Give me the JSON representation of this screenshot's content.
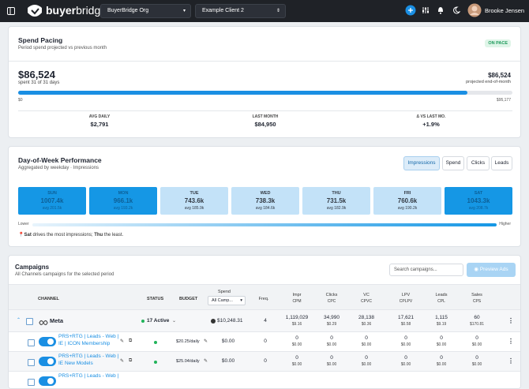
{
  "header": {
    "logo_bold": "buyer",
    "logo_light": "bridge",
    "org_select": "BuyerBridge Org",
    "client_select": "Example Client 2",
    "user_name": "Brooke Jensen"
  },
  "spend_pacing": {
    "title": "Spend Pacing",
    "subtitle": "Period spend projected vs previous month",
    "status": "ON PACE",
    "spent": {
      "value": 86524,
      "label": "$86,524"
    },
    "spent_note": "spent 31 of 31 days",
    "projected": "$86,524",
    "projected_note": "projected end-of-month",
    "scale": [
      {
        "value": 0,
        "label": "$0"
      },
      {
        "value": 95177,
        "label": "$95,177"
      }
    ],
    "stats": [
      {
        "label": "AVG DAILY",
        "value": "$2,791"
      },
      {
        "label": "LAST MONTH",
        "value": "$84,950"
      },
      {
        "label": "Δ VS LAST MO.",
        "value": "+1.9%"
      }
    ]
  },
  "day_of_week": {
    "title": "Day-of-Week Performance",
    "subtitle": "Aggregated by weekday · Impressions",
    "metrics": [
      "Impressions",
      "Spend",
      "Clicks",
      "Leads"
    ],
    "active_metric": 0,
    "days": [
      {
        "day": "SUN",
        "total": "1007.4k",
        "avg": "avg 201.5k",
        "color": "#1597e5",
        "text_color": "#0d5f96"
      },
      {
        "day": "MON",
        "total": "966.1k",
        "avg": "avg 193.2k",
        "color": "#1597e5",
        "text_color": "#0d5f96"
      },
      {
        "day": "TUE",
        "total": "743.6k",
        "avg": "avg 185.9k",
        "color": "#c3e2f8",
        "text_color": "#333a44"
      },
      {
        "day": "WED",
        "total": "738.3k",
        "avg": "avg 184.6k",
        "color": "#c3e2f8",
        "text_color": "#333a44"
      },
      {
        "day": "THU",
        "total": "731.5k",
        "avg": "avg 182.9k",
        "color": "#c3e2f8",
        "text_color": "#333a44"
      },
      {
        "day": "FRI",
        "total": "760.6k",
        "avg": "avg 190.2k",
        "color": "#c3e2f8",
        "text_color": "#333a44"
      },
      {
        "day": "SAT",
        "total": "1043.3k",
        "avg": "avg 208.7k",
        "color": "#1597e5",
        "text_color": "#0d5f96"
      }
    ],
    "scale_low": "Lower",
    "scale_high": "Higher",
    "note": {
      "top_day": "Sat",
      "text_1": " drives the most impressions; ",
      "low_day": "Thu",
      "text_2": " the least."
    }
  },
  "campaigns": {
    "title": "Campaigns",
    "subtitle": "All Channels campaigns for the selected period",
    "search_placeholder": "Search campaigns...",
    "preview_button": "Preview Ads",
    "columns": {
      "channel": "CHANNEL",
      "status": "STATUS",
      "budget": "BUDGET",
      "spend": "Spend",
      "spend_filter": "All Camp...",
      "freq": "Freq."
    },
    "metric_columns": [
      {
        "name": "Impr",
        "sub": "CPM"
      },
      {
        "name": "Clicks",
        "sub": "CPC"
      },
      {
        "name": "VC",
        "sub": "CPVC"
      },
      {
        "name": "LPV",
        "sub": "CPLPV"
      },
      {
        "name": "Leads",
        "sub": "CPL"
      },
      {
        "name": "Sales",
        "sub": "CPS"
      }
    ],
    "channel_row": {
      "name": "Meta",
      "status": "17 Active",
      "spend": "$10,248.31",
      "freq": "4",
      "metrics": [
        [
          "1,119,029",
          "$9.16"
        ],
        [
          "34,990",
          "$0.29"
        ],
        [
          "28,138",
          "$0.36"
        ],
        [
          "17,621",
          "$0.58"
        ],
        [
          "1,115",
          "$9.19"
        ],
        [
          "60",
          "$170.81"
        ]
      ]
    },
    "rows": [
      {
        "name": "PRS+RTG | Leads - Web | IE | ICON Membership",
        "budget": "$20.25/daily",
        "spend": "$0.00",
        "freq": "0",
        "metrics": [
          [
            "0",
            "$0.00"
          ],
          [
            "0",
            "$0.00"
          ],
          [
            "0",
            "$0.00"
          ],
          [
            "0",
            "$0.00"
          ],
          [
            "0",
            "$0.00"
          ],
          [
            "0",
            "$0.00"
          ]
        ]
      },
      {
        "name": "PRS+RTG | Leads - Web | IE New Models",
        "budget": "$25.04/daily",
        "spend": "$0.00",
        "freq": "0",
        "metrics": [
          [
            "0",
            "$0.00"
          ],
          [
            "0",
            "$0.00"
          ],
          [
            "0",
            "$0.00"
          ],
          [
            "0",
            "$0.00"
          ],
          [
            "0",
            "$0.00"
          ],
          [
            "0",
            "$0.00"
          ]
        ]
      },
      {
        "name": "PRS+RTG | Leads - Web |"
      }
    ]
  }
}
